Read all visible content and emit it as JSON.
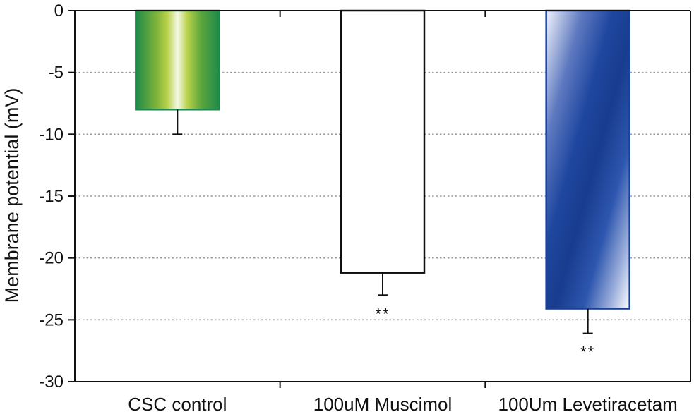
{
  "chart_data": {
    "type": "bar",
    "title": "",
    "xlabel": "",
    "ylabel": "Membrane potential (mV)",
    "ylim": [
      -30,
      0
    ],
    "yticks": [
      0,
      -5,
      -10,
      -15,
      -20,
      -25,
      -30
    ],
    "ytick_labels": [
      "0",
      "-5",
      "-10",
      "-15",
      "-20",
      "-25",
      "-30"
    ],
    "grid": true,
    "categories": [
      "CSC control",
      "100uM Muscimol",
      "100Um Levetiracetam"
    ],
    "values": [
      -8.0,
      -21.2,
      -24.1
    ],
    "errors": [
      2.0,
      1.8,
      2.0
    ],
    "significance": [
      "",
      "**",
      "**"
    ],
    "colors": {
      "green_dark": "#1e8a4a",
      "green_light": "#a8c83a",
      "blue_dark": "#1a3f96",
      "blue_light": "#ffffff",
      "outline_white_bar": "#111111"
    }
  }
}
